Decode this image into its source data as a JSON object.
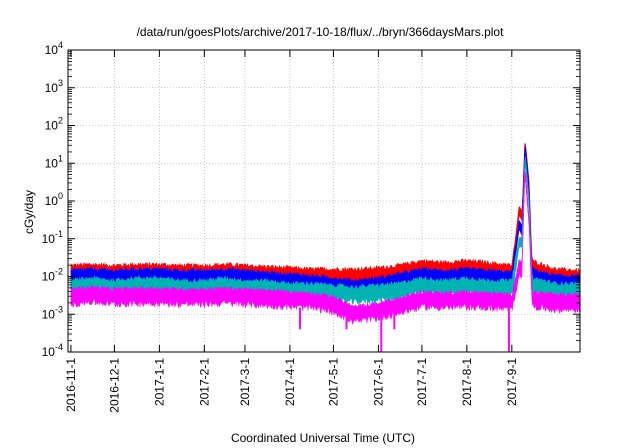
{
  "chart_data": {
    "type": "area",
    "title": "/data/run/goesPlots/archive/2017-10-18/flux/../bryn/366daysMars.plot",
    "xlabel": "Coordinated Universal Time (UTC)",
    "ylabel": "cGy/day",
    "y_scale": "log",
    "ylim": [
      0.0001,
      10000
    ],
    "xlim": [
      "2016-10-30",
      "2017-10-18"
    ],
    "grid": true,
    "legend": "none",
    "y_ticks": [
      {
        "value": 0.0001,
        "base": "10",
        "exp": "-4"
      },
      {
        "value": 0.001,
        "base": "10",
        "exp": "-3"
      },
      {
        "value": 0.01,
        "base": "10",
        "exp": "-2"
      },
      {
        "value": 0.1,
        "base": "10",
        "exp": "-1"
      },
      {
        "value": 1,
        "base": "10",
        "exp": "0"
      },
      {
        "value": 10,
        "base": "10",
        "exp": "1"
      },
      {
        "value": 100,
        "base": "10",
        "exp": "2"
      },
      {
        "value": 1000,
        "base": "10",
        "exp": "3"
      },
      {
        "value": 10000,
        "base": "10",
        "exp": "4"
      }
    ],
    "x_ticks": [
      {
        "date": "2016-11-01",
        "label": "2016-11-1"
      },
      {
        "date": "2016-12-01",
        "label": "2016-12-1"
      },
      {
        "date": "2017-01-01",
        "label": "2017-1-1"
      },
      {
        "date": "2017-02-01",
        "label": "2017-2-1"
      },
      {
        "date": "2017-03-01",
        "label": "2017-3-1"
      },
      {
        "date": "2017-04-01",
        "label": "2017-4-1"
      },
      {
        "date": "2017-05-01",
        "label": "2017-5-1"
      },
      {
        "date": "2017-06-01",
        "label": "2017-6-1"
      },
      {
        "date": "2017-07-01",
        "label": "2017-7-1"
      },
      {
        "date": "2017-08-01",
        "label": "2017-8-1"
      },
      {
        "date": "2017-09-01",
        "label": "2017-9-1"
      }
    ],
    "series": [
      {
        "color": "#ff0000",
        "x": [
          "2016-11-01",
          "2016-11-15",
          "2016-12-01",
          "2016-12-15",
          "2017-01-01",
          "2017-01-15",
          "2017-02-01",
          "2017-02-15",
          "2017-03-01",
          "2017-03-15",
          "2017-04-01",
          "2017-04-15",
          "2017-05-01",
          "2017-05-15",
          "2017-06-01",
          "2017-06-15",
          "2017-07-01",
          "2017-07-15",
          "2017-08-01",
          "2017-08-15",
          "2017-09-01",
          "2017-09-06",
          "2017-09-08",
          "2017-09-10",
          "2017-09-11",
          "2017-09-13",
          "2017-09-15",
          "2017-10-01",
          "2017-10-18"
        ],
        "y": [
          0.015,
          0.016,
          0.015,
          0.016,
          0.016,
          0.015,
          0.015,
          0.016,
          0.015,
          0.014,
          0.013,
          0.012,
          0.012,
          0.012,
          0.013,
          0.015,
          0.02,
          0.018,
          0.02,
          0.018,
          0.015,
          0.7,
          0.5,
          40,
          20,
          3,
          0.02,
          0.012,
          0.011
        ]
      },
      {
        "color": "#0000ff",
        "x": [
          "2016-11-01",
          "2016-11-15",
          "2016-12-01",
          "2016-12-15",
          "2017-01-01",
          "2017-01-15",
          "2017-02-01",
          "2017-02-15",
          "2017-03-01",
          "2017-03-15",
          "2017-04-01",
          "2017-04-15",
          "2017-05-01",
          "2017-05-15",
          "2017-06-01",
          "2017-06-15",
          "2017-07-01",
          "2017-07-15",
          "2017-08-01",
          "2017-08-15",
          "2017-09-01",
          "2017-09-06",
          "2017-09-08",
          "2017-09-10",
          "2017-09-11",
          "2017-09-13",
          "2017-09-15",
          "2017-10-01",
          "2017-10-18"
        ],
        "y": [
          0.011,
          0.012,
          0.011,
          0.012,
          0.012,
          0.011,
          0.011,
          0.012,
          0.011,
          0.01,
          0.009,
          0.008,
          0.007,
          0.006,
          0.007,
          0.009,
          0.012,
          0.011,
          0.012,
          0.011,
          0.01,
          0.3,
          0.2,
          35,
          15,
          2,
          0.012,
          0.008,
          0.008
        ]
      },
      {
        "color": "#00b3b3",
        "x": [
          "2016-11-01",
          "2016-11-15",
          "2016-12-01",
          "2016-12-15",
          "2017-01-01",
          "2017-01-15",
          "2017-02-01",
          "2017-02-15",
          "2017-03-01",
          "2017-03-15",
          "2017-04-01",
          "2017-04-15",
          "2017-05-01",
          "2017-05-15",
          "2017-06-01",
          "2017-06-15",
          "2017-07-01",
          "2017-07-15",
          "2017-08-01",
          "2017-08-15",
          "2017-09-01",
          "2017-09-06",
          "2017-09-08",
          "2017-09-10",
          "2017-09-11",
          "2017-09-13",
          "2017-09-15",
          "2017-10-01",
          "2017-10-18"
        ],
        "y": [
          0.006,
          0.007,
          0.006,
          0.007,
          0.007,
          0.006,
          0.006,
          0.007,
          0.006,
          0.006,
          0.005,
          0.005,
          0.0045,
          0.004,
          0.0045,
          0.005,
          0.007,
          0.006,
          0.007,
          0.006,
          0.006,
          0.1,
          0.1,
          15,
          8,
          1,
          0.007,
          0.005,
          0.005
        ]
      },
      {
        "color": "#ff00ff",
        "x": [
          "2016-11-01",
          "2016-11-15",
          "2016-12-01",
          "2016-12-15",
          "2017-01-01",
          "2017-01-15",
          "2017-02-01",
          "2017-02-15",
          "2017-03-01",
          "2017-03-15",
          "2017-04-01",
          "2017-04-15",
          "2017-05-01",
          "2017-05-15",
          "2017-06-01",
          "2017-06-15",
          "2017-07-01",
          "2017-07-15",
          "2017-08-01",
          "2017-08-15",
          "2017-09-01",
          "2017-09-06",
          "2017-09-08",
          "2017-09-10",
          "2017-09-11",
          "2017-09-13",
          "2017-09-15",
          "2017-10-01",
          "2017-10-18"
        ],
        "y": [
          0.0035,
          0.004,
          0.0035,
          0.0037,
          0.0037,
          0.0035,
          0.0035,
          0.0037,
          0.0035,
          0.0032,
          0.003,
          0.0028,
          0.0022,
          0.0012,
          0.0015,
          0.002,
          0.003,
          0.0028,
          0.003,
          0.0028,
          0.0025,
          0.02,
          0.02,
          8,
          3,
          0.3,
          0.003,
          0.0025,
          0.0025
        ]
      }
    ]
  }
}
